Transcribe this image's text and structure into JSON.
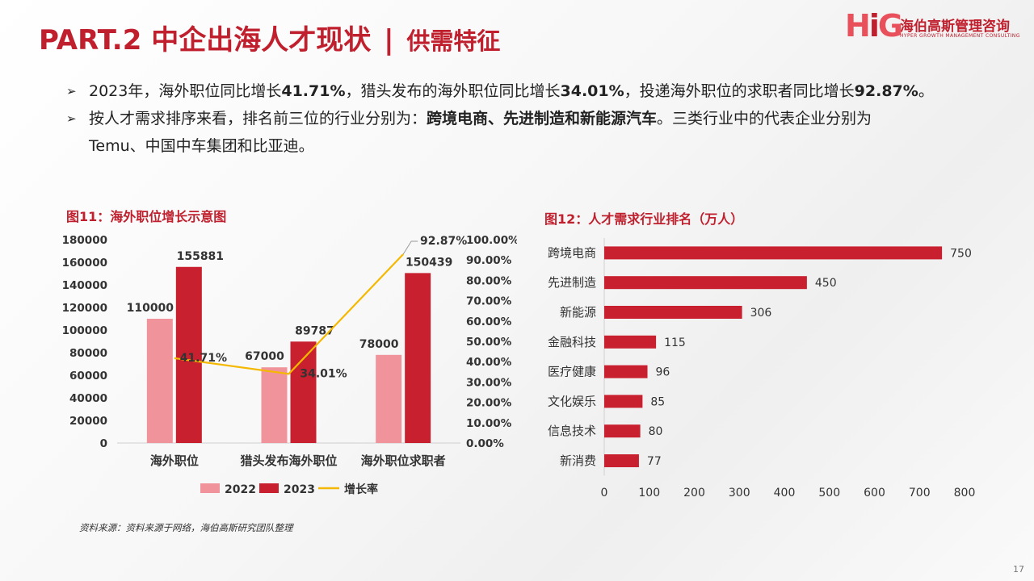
{
  "header": {
    "title_main": "PART.2 中企出海人才现状",
    "separator": "|",
    "title_sub": "供需特征"
  },
  "logo": {
    "mark_h": "H",
    "mark_i": "i",
    "mark_g": "G",
    "name_cn": "海伯高斯管理咨询",
    "name_en": "HYPER GROWTH MANAGEMENT CONSULTING"
  },
  "bullets": [
    {
      "marker": "➢",
      "parts": [
        {
          "t": "2023年，海外职位同比增长",
          "b": false
        },
        {
          "t": "41.71%",
          "b": true
        },
        {
          "t": "，猎头发布的海外职位同比增长",
          "b": false
        },
        {
          "t": "34.01%",
          "b": true
        },
        {
          "t": "，投递海外职位的求职者同比增长",
          "b": false
        },
        {
          "t": "92.87%",
          "b": true
        },
        {
          "t": "。",
          "b": false
        }
      ]
    },
    {
      "marker": "➢",
      "parts": [
        {
          "t": "按人才需求排序来看，排名前三位的行业分别为：",
          "b": false
        },
        {
          "t": "跨境电商、先进制造和新能源汽车",
          "b": true
        },
        {
          "t": "。三类行业中的代表企业分别为",
          "b": false
        }
      ],
      "continuation": "Temu、中国中车集团和比亚迪。"
    }
  ],
  "chart_titles": {
    "left": "图11：海外职位增长示意图",
    "right": "图12：人才需求行业排名（万人）"
  },
  "chart_data": [
    {
      "type": "bar",
      "title": "图11：海外职位增长示意图",
      "categories": [
        "海外职位",
        "猎头发布海外职位",
        "海外职位求职者"
      ],
      "series": [
        {
          "name": "2022",
          "values": [
            110000,
            67000,
            78000
          ],
          "color": "#f0939b"
        },
        {
          "name": "2023",
          "values": [
            155881,
            89787,
            150439
          ],
          "color": "#c8202f"
        }
      ],
      "line_series": {
        "name": "增长率",
        "values": [
          41.71,
          34.01,
          92.87
        ],
        "labels": [
          "41.71%",
          "34.01%",
          "92.87%"
        ],
        "color": "#f5b800"
      },
      "y_ticks": [
        "0",
        "20000",
        "40000",
        "60000",
        "80000",
        "100000",
        "120000",
        "140000",
        "160000",
        "180000"
      ],
      "y2_ticks": [
        "0.00%",
        "10.00%",
        "20.00%",
        "30.00%",
        "40.00%",
        "50.00%",
        "60.00%",
        "70.00%",
        "80.00%",
        "90.00%",
        "100.00%"
      ],
      "ylim": [
        0,
        180000
      ],
      "y2lim": [
        0,
        100
      ],
      "legend_position": "bottom"
    },
    {
      "type": "bar",
      "orientation": "horizontal",
      "title": "图12：人才需求行业排名（万人）",
      "categories": [
        "跨境电商",
        "先进制造",
        "新能源",
        "金融科技",
        "医疗健康",
        "文化娱乐",
        "信息技术",
        "新消费"
      ],
      "values": [
        750,
        450,
        306,
        115,
        96,
        85,
        80,
        77
      ],
      "x_ticks": [
        "0",
        "100",
        "200",
        "300",
        "400",
        "500",
        "600",
        "700",
        "800"
      ],
      "xlim": [
        0,
        800
      ],
      "color": "#c8202f"
    }
  ],
  "source": "资料来源：资料来源于网络，海伯高斯研究团队整理",
  "page_number": "17"
}
